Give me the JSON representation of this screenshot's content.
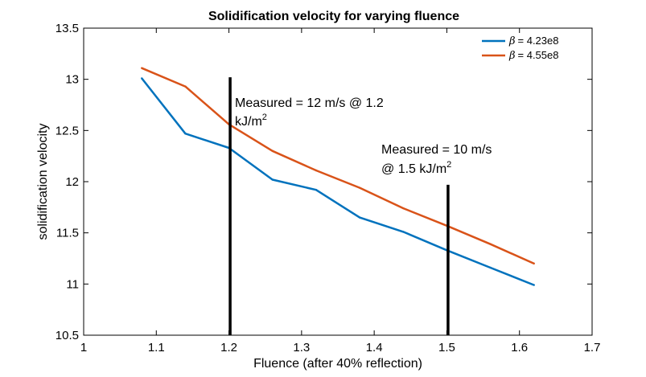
{
  "chart_data": {
    "type": "line",
    "title": "Solidification velocity for varying fluence",
    "xlabel": "Fluence (after 40% reflection)",
    "ylabel": "solidification velocity",
    "xlim": [
      1,
      1.7
    ],
    "ylim": [
      10.5,
      13.5
    ],
    "x_ticks": [
      1,
      1.1,
      1.2,
      1.3,
      1.4,
      1.5,
      1.6,
      1.7
    ],
    "x_tick_labels": [
      "1",
      "1.1",
      "1.2",
      "1.3",
      "1.4",
      "1.5",
      "1.6",
      "1.7"
    ],
    "y_ticks": [
      10.5,
      11,
      11.5,
      12,
      12.5,
      13,
      13.5
    ],
    "y_tick_labels": [
      "10.5",
      "11",
      "11.5",
      "12",
      "12.5",
      "13",
      "13.5"
    ],
    "grid": false,
    "legend_position": "top-right",
    "legend_beta_symbol": "β",
    "series": [
      {
        "name": "= 4.23e8",
        "color": "#0072BD",
        "x": [
          1.08,
          1.14,
          1.2,
          1.26,
          1.32,
          1.38,
          1.44,
          1.5,
          1.56,
          1.62
        ],
        "y": [
          13.01,
          12.47,
          12.33,
          12.02,
          11.92,
          11.65,
          11.51,
          11.33,
          11.16,
          10.99
        ]
      },
      {
        "name": "= 4.55e8",
        "color": "#D95319",
        "x": [
          1.08,
          1.14,
          1.2,
          1.26,
          1.32,
          1.38,
          1.44,
          1.5,
          1.56,
          1.62
        ],
        "y": [
          13.11,
          12.93,
          12.56,
          12.3,
          12.11,
          11.94,
          11.74,
          11.57,
          11.39,
          11.2
        ]
      }
    ],
    "markers": [
      {
        "x": 1.2,
        "y_from": 10.5,
        "y_to": 13.02,
        "color": "#000000"
      },
      {
        "x": 1.5,
        "y_from": 10.5,
        "y_to": 11.97,
        "color": "#000000"
      }
    ],
    "annotations": [
      {
        "lines": [
          "Measured = 12 m/s @ 1.2",
          "kJ/m"
        ],
        "superscript": "2"
      },
      {
        "lines": [
          "Measured = 10 m/s",
          "@ 1.5 kJ/m"
        ],
        "superscript": "2"
      }
    ]
  }
}
